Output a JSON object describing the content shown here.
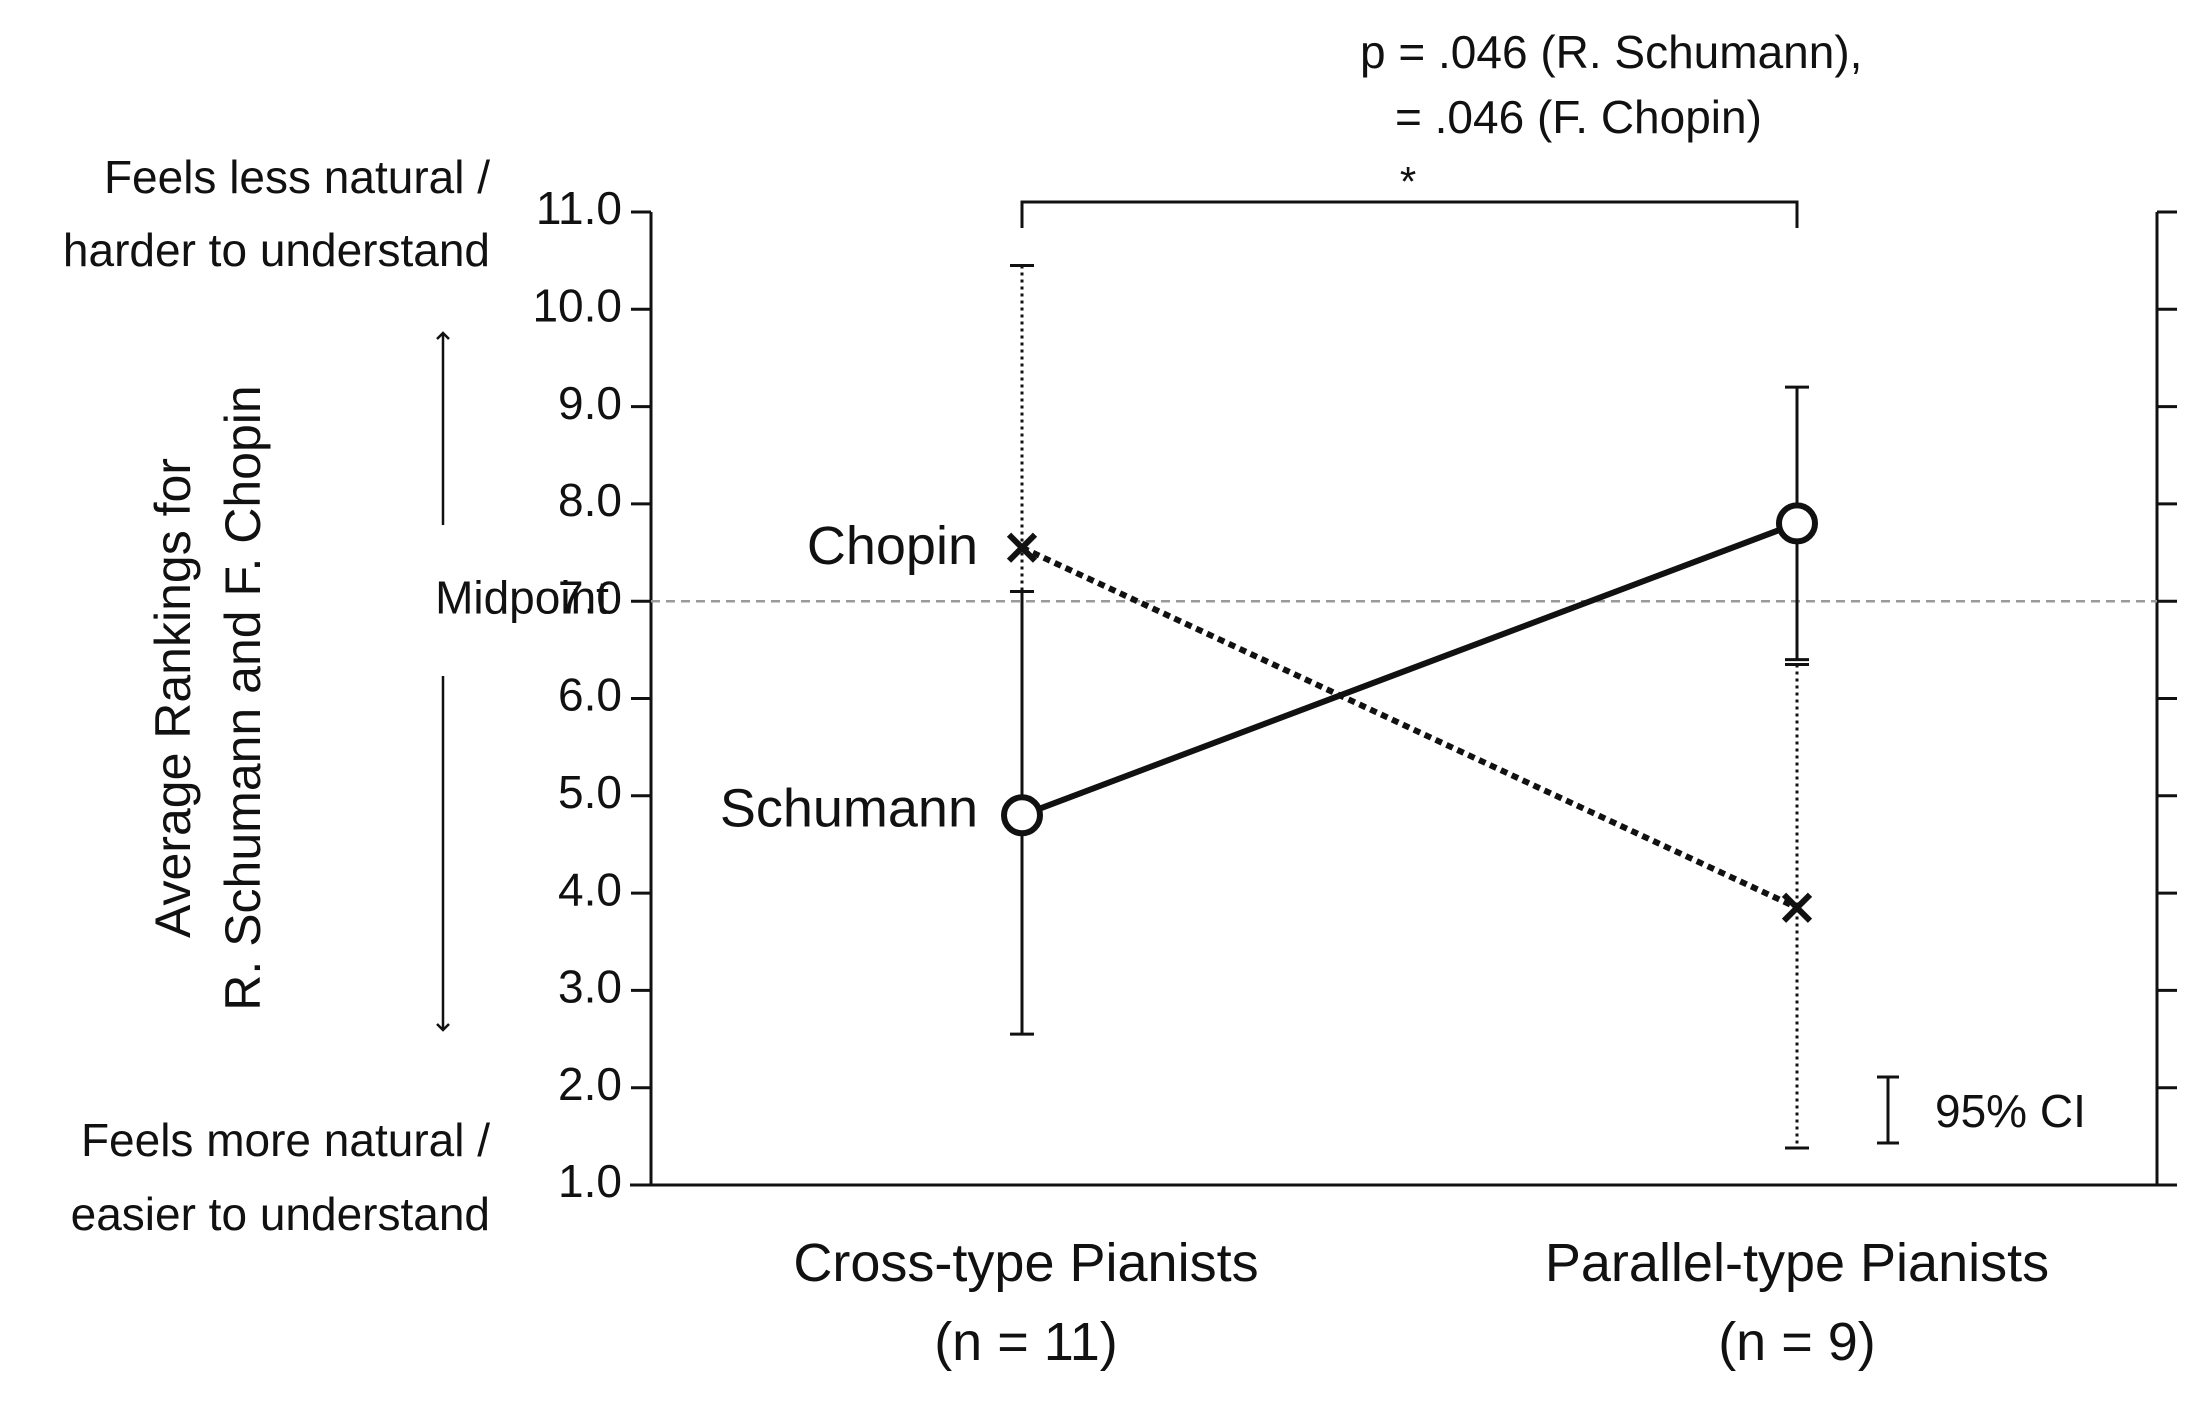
{
  "chart_data": {
    "type": "line",
    "categories": [
      "Cross-type Pianists",
      "Parallel-type Pianists"
    ],
    "category_sublabels": [
      "(n = 11)",
      "(n = 9)"
    ],
    "ylabel_lines": [
      "Average Rankings for",
      "R. Schumann and F. Chopin"
    ],
    "ylim": [
      1.0,
      11.0
    ],
    "yticks": [
      "1.0",
      "2.0",
      "3.0",
      "4.0",
      "5.0",
      "6.0",
      "7.0",
      "8.0",
      "9.0",
      "10.0",
      "11.0"
    ],
    "grid": false,
    "series": [
      {
        "name": "Schumann",
        "values": [
          4.8,
          7.8
        ],
        "ci_lower": [
          2.55,
          6.4
        ],
        "ci_upper": [
          7.1,
          9.2
        ],
        "marker": "open-circle",
        "line_style": "solid"
      },
      {
        "name": "Chopin",
        "values": [
          7.55,
          3.85
        ],
        "ci_lower": [
          7.1,
          1.38
        ],
        "ci_upper": [
          10.45,
          6.35
        ],
        "marker": "x",
        "line_style": "dotted"
      }
    ],
    "reference_line": {
      "value": 7.0,
      "label": "Midpoint"
    },
    "annotations": {
      "top_label_lines": [
        "Feels less natural /",
        "harder to understand"
      ],
      "bottom_label_lines": [
        "Feels more natural /",
        "easier to understand"
      ],
      "significance_lines": [
        "p = .046 (R. Schumann),",
        "= .046 (F. Chopin)"
      ],
      "significance_marker": "*",
      "ci_legend": "95% CI"
    }
  }
}
